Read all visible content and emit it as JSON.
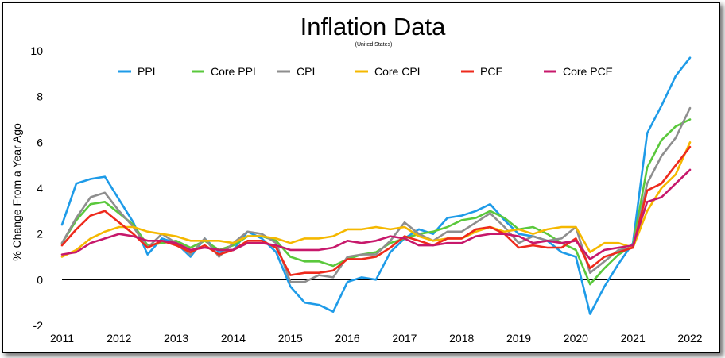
{
  "chart_data": {
    "type": "line",
    "title": "Inflation Data",
    "subtitle": "(United States)",
    "xlabel": "",
    "ylabel": "% Change From a Year Ago",
    "xlim": [
      2011,
      2022
    ],
    "ylim": [
      -2,
      10
    ],
    "x_ticks": [
      "2011",
      "2012",
      "2013",
      "2014",
      "2015",
      "2016",
      "2017",
      "2018",
      "2019",
      "2020",
      "2021",
      "2022"
    ],
    "y_ticks": [
      "-2",
      "0",
      "2",
      "4",
      "6",
      "8",
      "10"
    ],
    "zero_line": true,
    "grid": false,
    "legend_position": "top",
    "x": [
      2011.0,
      2011.25,
      2011.5,
      2011.75,
      2012.0,
      2012.25,
      2012.5,
      2012.75,
      2013.0,
      2013.25,
      2013.5,
      2013.75,
      2014.0,
      2014.25,
      2014.5,
      2014.75,
      2015.0,
      2015.25,
      2015.5,
      2015.75,
      2016.0,
      2016.25,
      2016.5,
      2016.75,
      2017.0,
      2017.25,
      2017.5,
      2017.75,
      2018.0,
      2018.25,
      2018.5,
      2018.75,
      2019.0,
      2019.25,
      2019.5,
      2019.75,
      2020.0,
      2020.25,
      2020.5,
      2020.75,
      2021.0,
      2021.25,
      2021.5,
      2021.75,
      2022.0
    ],
    "series": [
      {
        "name": "PPI",
        "color": "#1e9be8",
        "values": [
          2.4,
          4.2,
          4.4,
          4.5,
          3.5,
          2.5,
          1.1,
          1.8,
          1.6,
          1.0,
          1.8,
          1.2,
          1.3,
          2.1,
          1.8,
          1.2,
          -0.3,
          -1.0,
          -1.1,
          -1.4,
          -0.1,
          0.1,
          0.0,
          1.2,
          1.8,
          2.2,
          2.0,
          2.7,
          2.8,
          3.0,
          3.3,
          2.6,
          2.0,
          1.9,
          1.7,
          1.2,
          1.0,
          -1.5,
          -0.3,
          0.7,
          1.6,
          6.4,
          7.6,
          8.9,
          9.7
        ]
      },
      {
        "name": "Core PPI",
        "color": "#5ac83c",
        "values": [
          1.6,
          2.6,
          3.3,
          3.4,
          2.9,
          2.4,
          1.5,
          1.6,
          1.7,
          1.4,
          1.7,
          1.3,
          1.5,
          1.9,
          1.9,
          1.7,
          1.0,
          0.8,
          0.8,
          0.6,
          0.9,
          1.1,
          1.2,
          1.6,
          1.8,
          2.0,
          2.1,
          2.3,
          2.6,
          2.7,
          3.0,
          2.7,
          2.2,
          2.3,
          2.0,
          1.6,
          1.3,
          -0.2,
          0.5,
          1.1,
          1.5,
          4.9,
          6.1,
          6.7,
          7.0
        ]
      },
      {
        "name": "CPI",
        "color": "#8e8e8e",
        "values": [
          1.6,
          2.7,
          3.6,
          3.8,
          3.0,
          2.3,
          1.4,
          2.0,
          1.6,
          1.1,
          1.8,
          1.0,
          1.6,
          2.1,
          2.0,
          1.6,
          -0.1,
          -0.1,
          0.2,
          0.1,
          1.0,
          1.1,
          1.1,
          1.7,
          2.5,
          2.0,
          1.7,
          2.1,
          2.1,
          2.5,
          2.9,
          2.3,
          1.6,
          1.9,
          1.7,
          1.8,
          2.3,
          0.3,
          0.8,
          1.3,
          1.4,
          4.2,
          5.4,
          6.2,
          7.5
        ]
      },
      {
        "name": "Core CPI",
        "color": "#f5b800",
        "values": [
          1.0,
          1.3,
          1.8,
          2.1,
          2.3,
          2.3,
          2.1,
          2.0,
          1.9,
          1.7,
          1.7,
          1.7,
          1.6,
          1.9,
          1.9,
          1.8,
          1.6,
          1.8,
          1.8,
          1.9,
          2.2,
          2.2,
          2.3,
          2.2,
          2.3,
          1.9,
          1.7,
          1.8,
          1.8,
          2.1,
          2.3,
          2.1,
          2.2,
          2.0,
          2.2,
          2.3,
          2.3,
          1.2,
          1.6,
          1.6,
          1.4,
          3.0,
          4.0,
          4.6,
          6.0
        ]
      },
      {
        "name": "PCE",
        "color": "#ee2a1c",
        "values": [
          1.5,
          2.2,
          2.8,
          3.0,
          2.5,
          2.0,
          1.4,
          1.7,
          1.5,
          1.2,
          1.5,
          1.1,
          1.3,
          1.7,
          1.7,
          1.4,
          0.2,
          0.3,
          0.3,
          0.4,
          0.9,
          0.9,
          1.0,
          1.4,
          1.9,
          1.7,
          1.5,
          1.8,
          1.8,
          2.2,
          2.3,
          2.0,
          1.4,
          1.5,
          1.4,
          1.4,
          1.8,
          0.5,
          1.0,
          1.2,
          1.4,
          3.9,
          4.2,
          5.0,
          5.8
        ]
      },
      {
        "name": "Core PCE",
        "color": "#c7186b",
        "values": [
          1.1,
          1.2,
          1.6,
          1.8,
          2.0,
          1.9,
          1.7,
          1.7,
          1.6,
          1.3,
          1.4,
          1.3,
          1.3,
          1.6,
          1.6,
          1.5,
          1.3,
          1.3,
          1.3,
          1.4,
          1.7,
          1.6,
          1.7,
          1.9,
          1.8,
          1.5,
          1.5,
          1.6,
          1.6,
          1.9,
          2.0,
          2.0,
          1.9,
          1.6,
          1.7,
          1.6,
          1.7,
          0.9,
          1.3,
          1.4,
          1.5,
          3.4,
          3.6,
          4.2,
          4.8
        ]
      }
    ]
  }
}
